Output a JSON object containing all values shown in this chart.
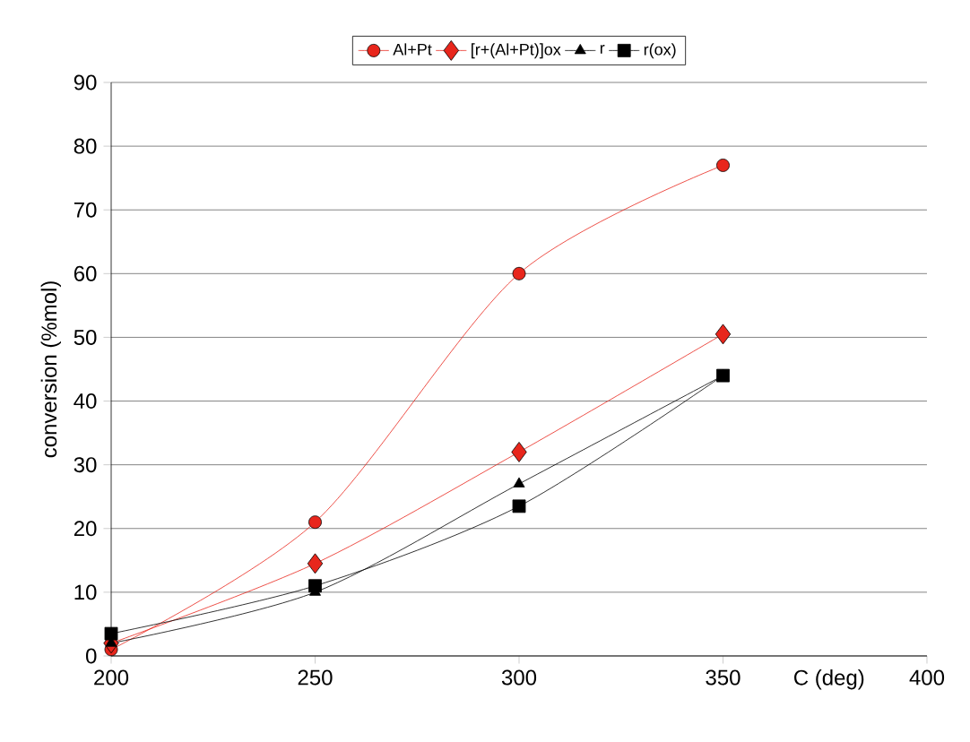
{
  "chart_data": {
    "type": "line",
    "xlabel": "C (deg)",
    "ylabel": "conversion (%mol)",
    "x": [
      200,
      250,
      300,
      350
    ],
    "series": [
      {
        "name": "Al+Pt",
        "color": "#e8261c",
        "marker": "circle",
        "values": [
          1,
          21,
          60,
          77
        ]
      },
      {
        "name": "[r+(Al+Pt)]ox",
        "color": "#e8261c",
        "marker": "diamond",
        "values": [
          2,
          14.5,
          32,
          50.5
        ]
      },
      {
        "name": "r",
        "color": "#000000",
        "marker": "triangle",
        "values": [
          2,
          10,
          27,
          44
        ]
      },
      {
        "name": "r(ox)",
        "color": "#000000",
        "marker": "square",
        "values": [
          3.5,
          11,
          23.5,
          44
        ]
      }
    ],
    "xlim": [
      200,
      400
    ],
    "xticks": [
      200,
      250,
      300,
      350,
      400
    ],
    "ylim": [
      0,
      90
    ],
    "yticks": [
      0,
      10,
      20,
      30,
      40,
      50,
      60,
      70,
      80,
      90
    ],
    "grid": "y",
    "legend": "top",
    "line_style": "solid"
  }
}
